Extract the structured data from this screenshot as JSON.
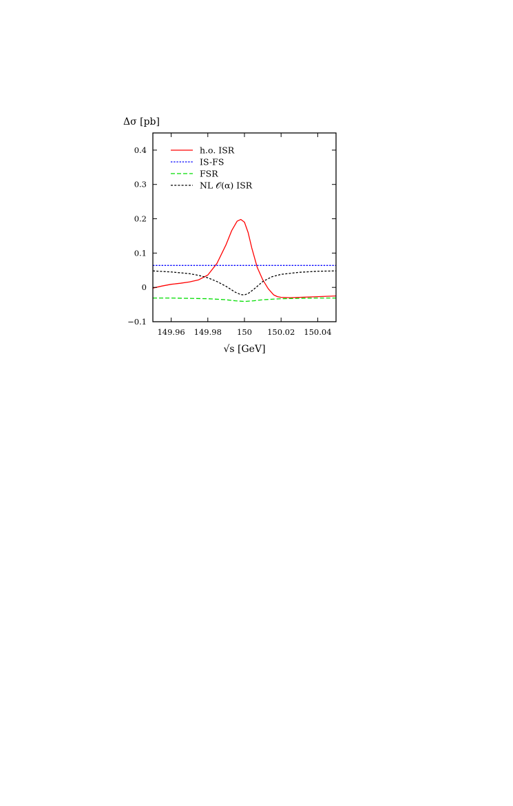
{
  "chart_data": {
    "type": "line",
    "xlabel": "√s [GeV]",
    "ylabel": "Δσ [pb]",
    "xlim": [
      149.95,
      150.05
    ],
    "ylim": [
      -0.1,
      0.45
    ],
    "xticks": [
      149.96,
      149.98,
      150.0,
      150.02,
      150.04
    ],
    "xtick_labels": [
      "149.96",
      "149.98",
      "150",
      "150.02",
      "150.04"
    ],
    "yticks": [
      -0.1,
      0.0,
      0.1,
      0.2,
      0.3,
      0.4
    ],
    "ytick_labels": [
      "−0.1",
      "0",
      "0.1",
      "0.2",
      "0.3",
      "0.4"
    ],
    "grid": false,
    "legend_position": "top-left",
    "series": [
      {
        "name": "h.o. ISR",
        "color": "#ff0000",
        "dash": "solid",
        "x": [
          149.95,
          149.955,
          149.96,
          149.965,
          149.97,
          149.975,
          149.98,
          149.985,
          149.99,
          149.993,
          149.996,
          149.998,
          150.0,
          150.002,
          150.004,
          150.007,
          150.01,
          150.013,
          150.016,
          150.018,
          150.02,
          150.025,
          150.03,
          150.035,
          150.04,
          150.045,
          150.05
        ],
        "y": [
          -0.002,
          0.004,
          0.009,
          0.012,
          0.016,
          0.022,
          0.036,
          0.07,
          0.125,
          0.165,
          0.193,
          0.198,
          0.19,
          0.16,
          0.115,
          0.058,
          0.022,
          -0.004,
          -0.022,
          -0.027,
          -0.029,
          -0.03,
          -0.029,
          -0.028,
          -0.027,
          -0.026,
          -0.025
        ]
      },
      {
        "name": "IS-FS",
        "color": "#0000ff",
        "dash": "fine-dot",
        "x": [
          149.95,
          150.05
        ],
        "y": [
          0.064,
          0.064
        ]
      },
      {
        "name": "FSR",
        "color": "#00dd00",
        "dash": "dashed",
        "x": [
          149.95,
          149.96,
          149.97,
          149.98,
          149.99,
          149.995,
          150.0,
          150.005,
          150.01,
          150.02,
          150.03,
          150.04,
          150.05
        ],
        "y": [
          -0.031,
          -0.031,
          -0.032,
          -0.033,
          -0.036,
          -0.039,
          -0.041,
          -0.039,
          -0.036,
          -0.033,
          -0.032,
          -0.031,
          -0.031
        ]
      },
      {
        "name": "NL 𝒪(α) ISR",
        "color": "#000000",
        "dash": "dotted",
        "x": [
          149.95,
          149.96,
          149.97,
          149.975,
          149.98,
          149.985,
          149.99,
          149.995,
          149.998,
          150.0,
          150.002,
          150.005,
          150.01,
          150.015,
          150.02,
          150.03,
          150.04,
          150.05
        ],
        "y": [
          0.048,
          0.045,
          0.04,
          0.035,
          0.028,
          0.017,
          0.003,
          -0.014,
          -0.021,
          -0.022,
          -0.018,
          -0.006,
          0.017,
          0.031,
          0.038,
          0.044,
          0.047,
          0.048
        ]
      }
    ]
  }
}
